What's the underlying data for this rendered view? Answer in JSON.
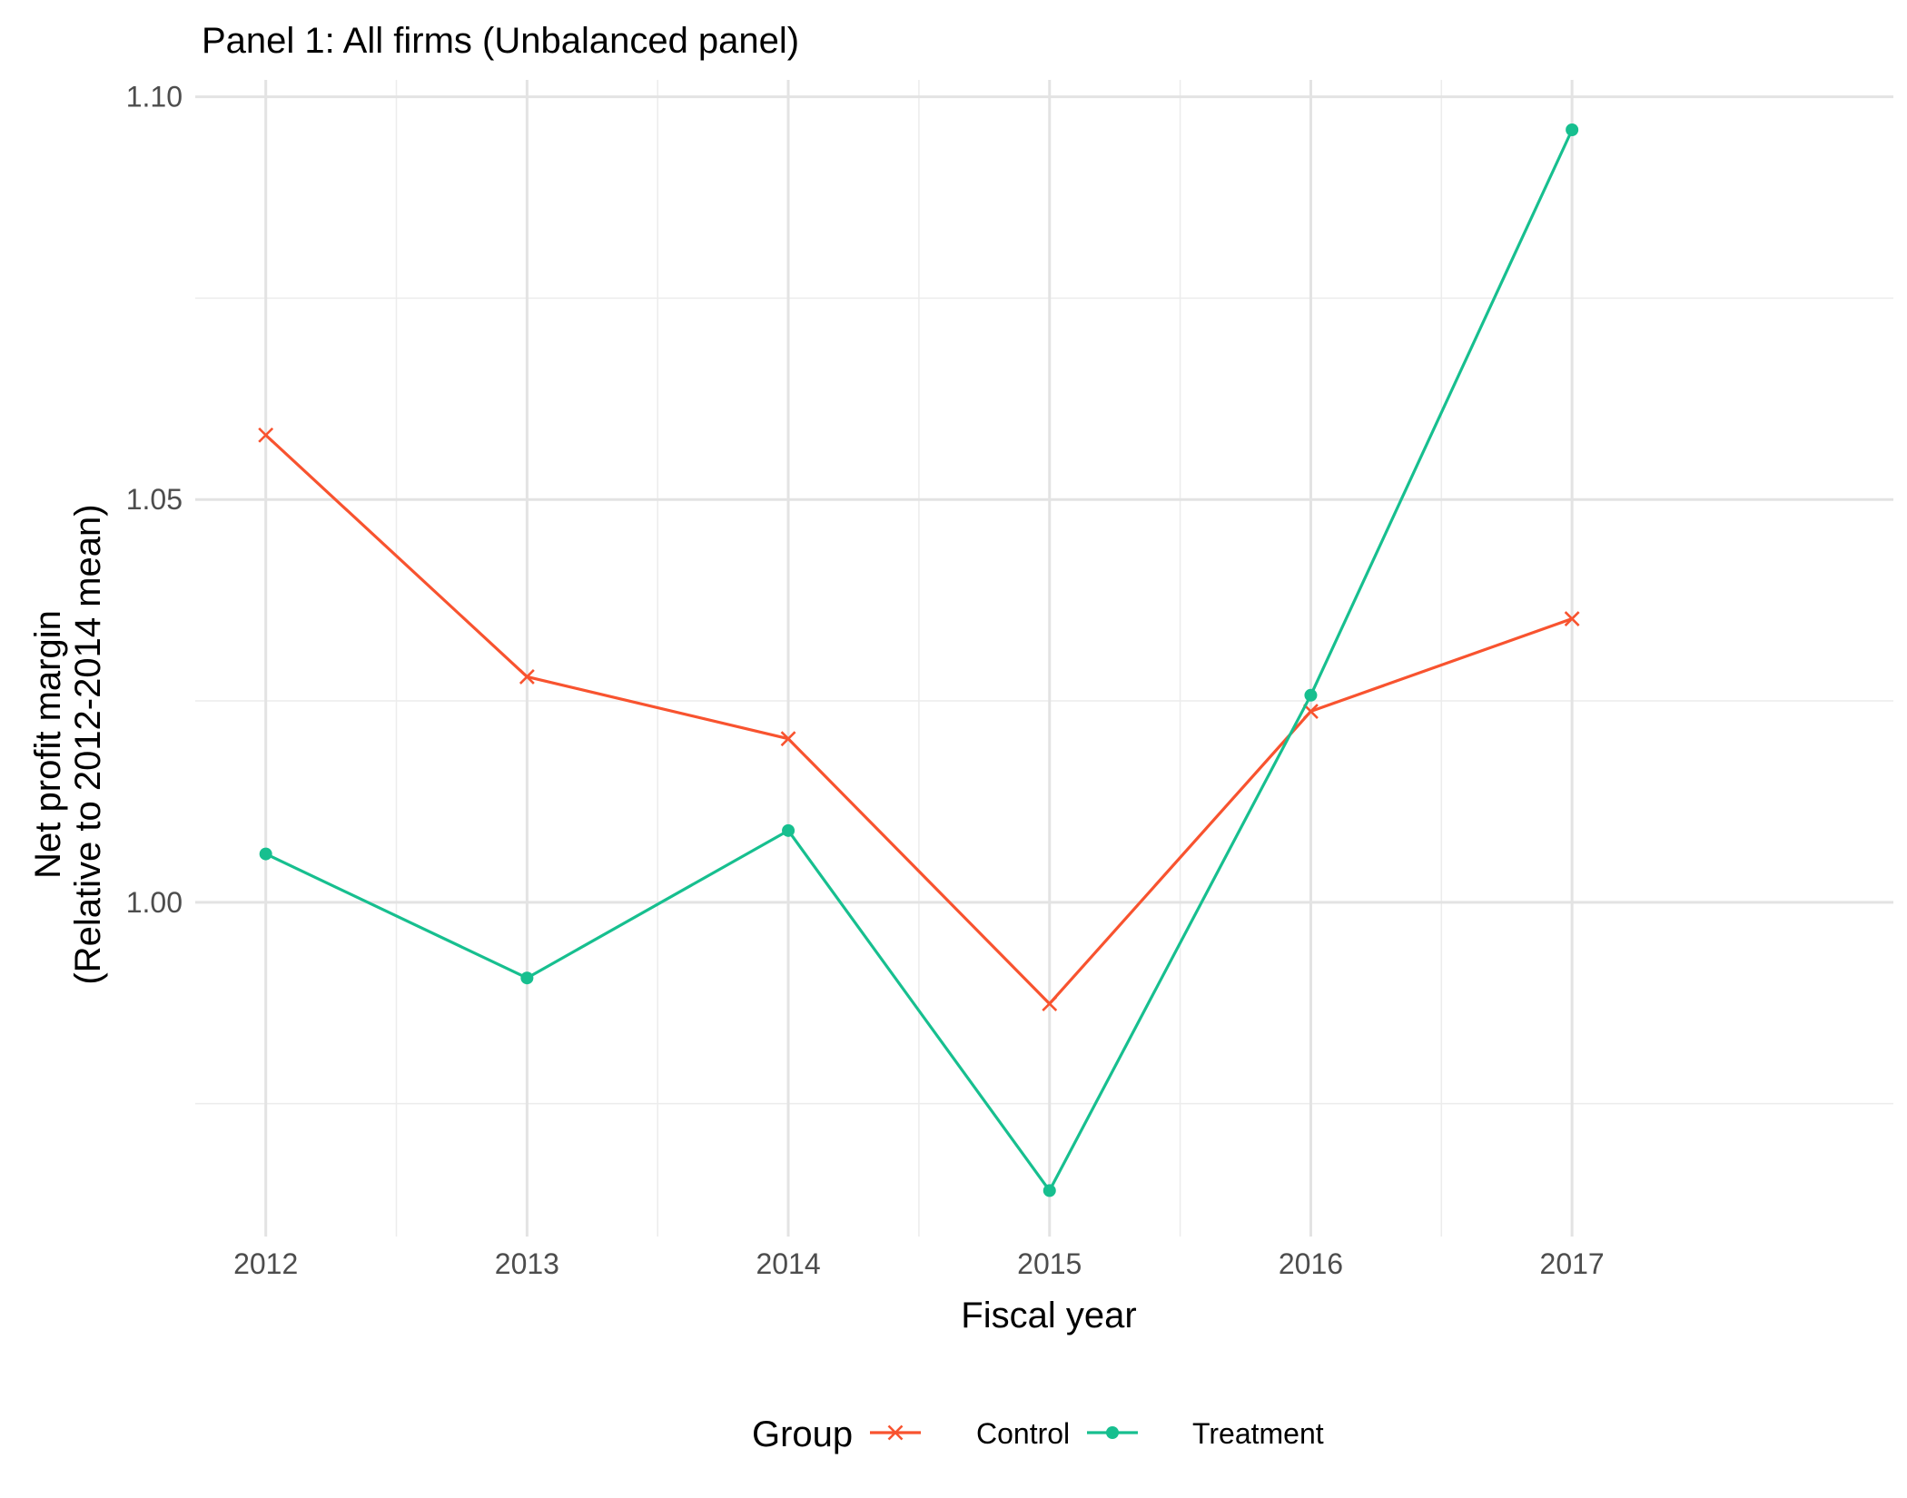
{
  "chart_data": {
    "type": "line",
    "title": "Panel 1: All firms (Unbalanced panel)",
    "xlabel": "Fiscal year",
    "ylabel_line1": "Net profit margin",
    "ylabel_line2": "(Relative to 2012-2014 mean)",
    "x": [
      2012,
      2013,
      2014,
      2015,
      2016,
      2017
    ],
    "x_tick_labels": [
      "2012",
      "2013",
      "2014",
      "2015",
      "2016",
      "2017"
    ],
    "xlim": [
      2011.73,
      2018.23
    ],
    "ylim": [
      0.9585,
      1.1021
    ],
    "y_ticks": [
      1.0,
      1.05,
      1.1
    ],
    "y_tick_labels": [
      "1.00",
      "1.05",
      "1.10"
    ],
    "y_minor_ticks": [
      0.975,
      1.025,
      1.075
    ],
    "x_minor_ticks": [
      2012.5,
      2013.5,
      2014.5,
      2015.5,
      2016.5
    ],
    "grid": true,
    "legend_title": "Group",
    "legend_position": "bottom",
    "series": [
      {
        "name": "Control",
        "color": "#f8532f",
        "marker": "x",
        "values": [
          1.058,
          1.028,
          1.0203,
          0.9874,
          1.0237,
          1.0352
        ]
      },
      {
        "name": "Treatment",
        "color": "#17bf8f",
        "marker": "circle",
        "values": [
          1.006,
          0.9906,
          1.0089,
          0.9642,
          1.0257,
          1.0959
        ]
      }
    ]
  }
}
